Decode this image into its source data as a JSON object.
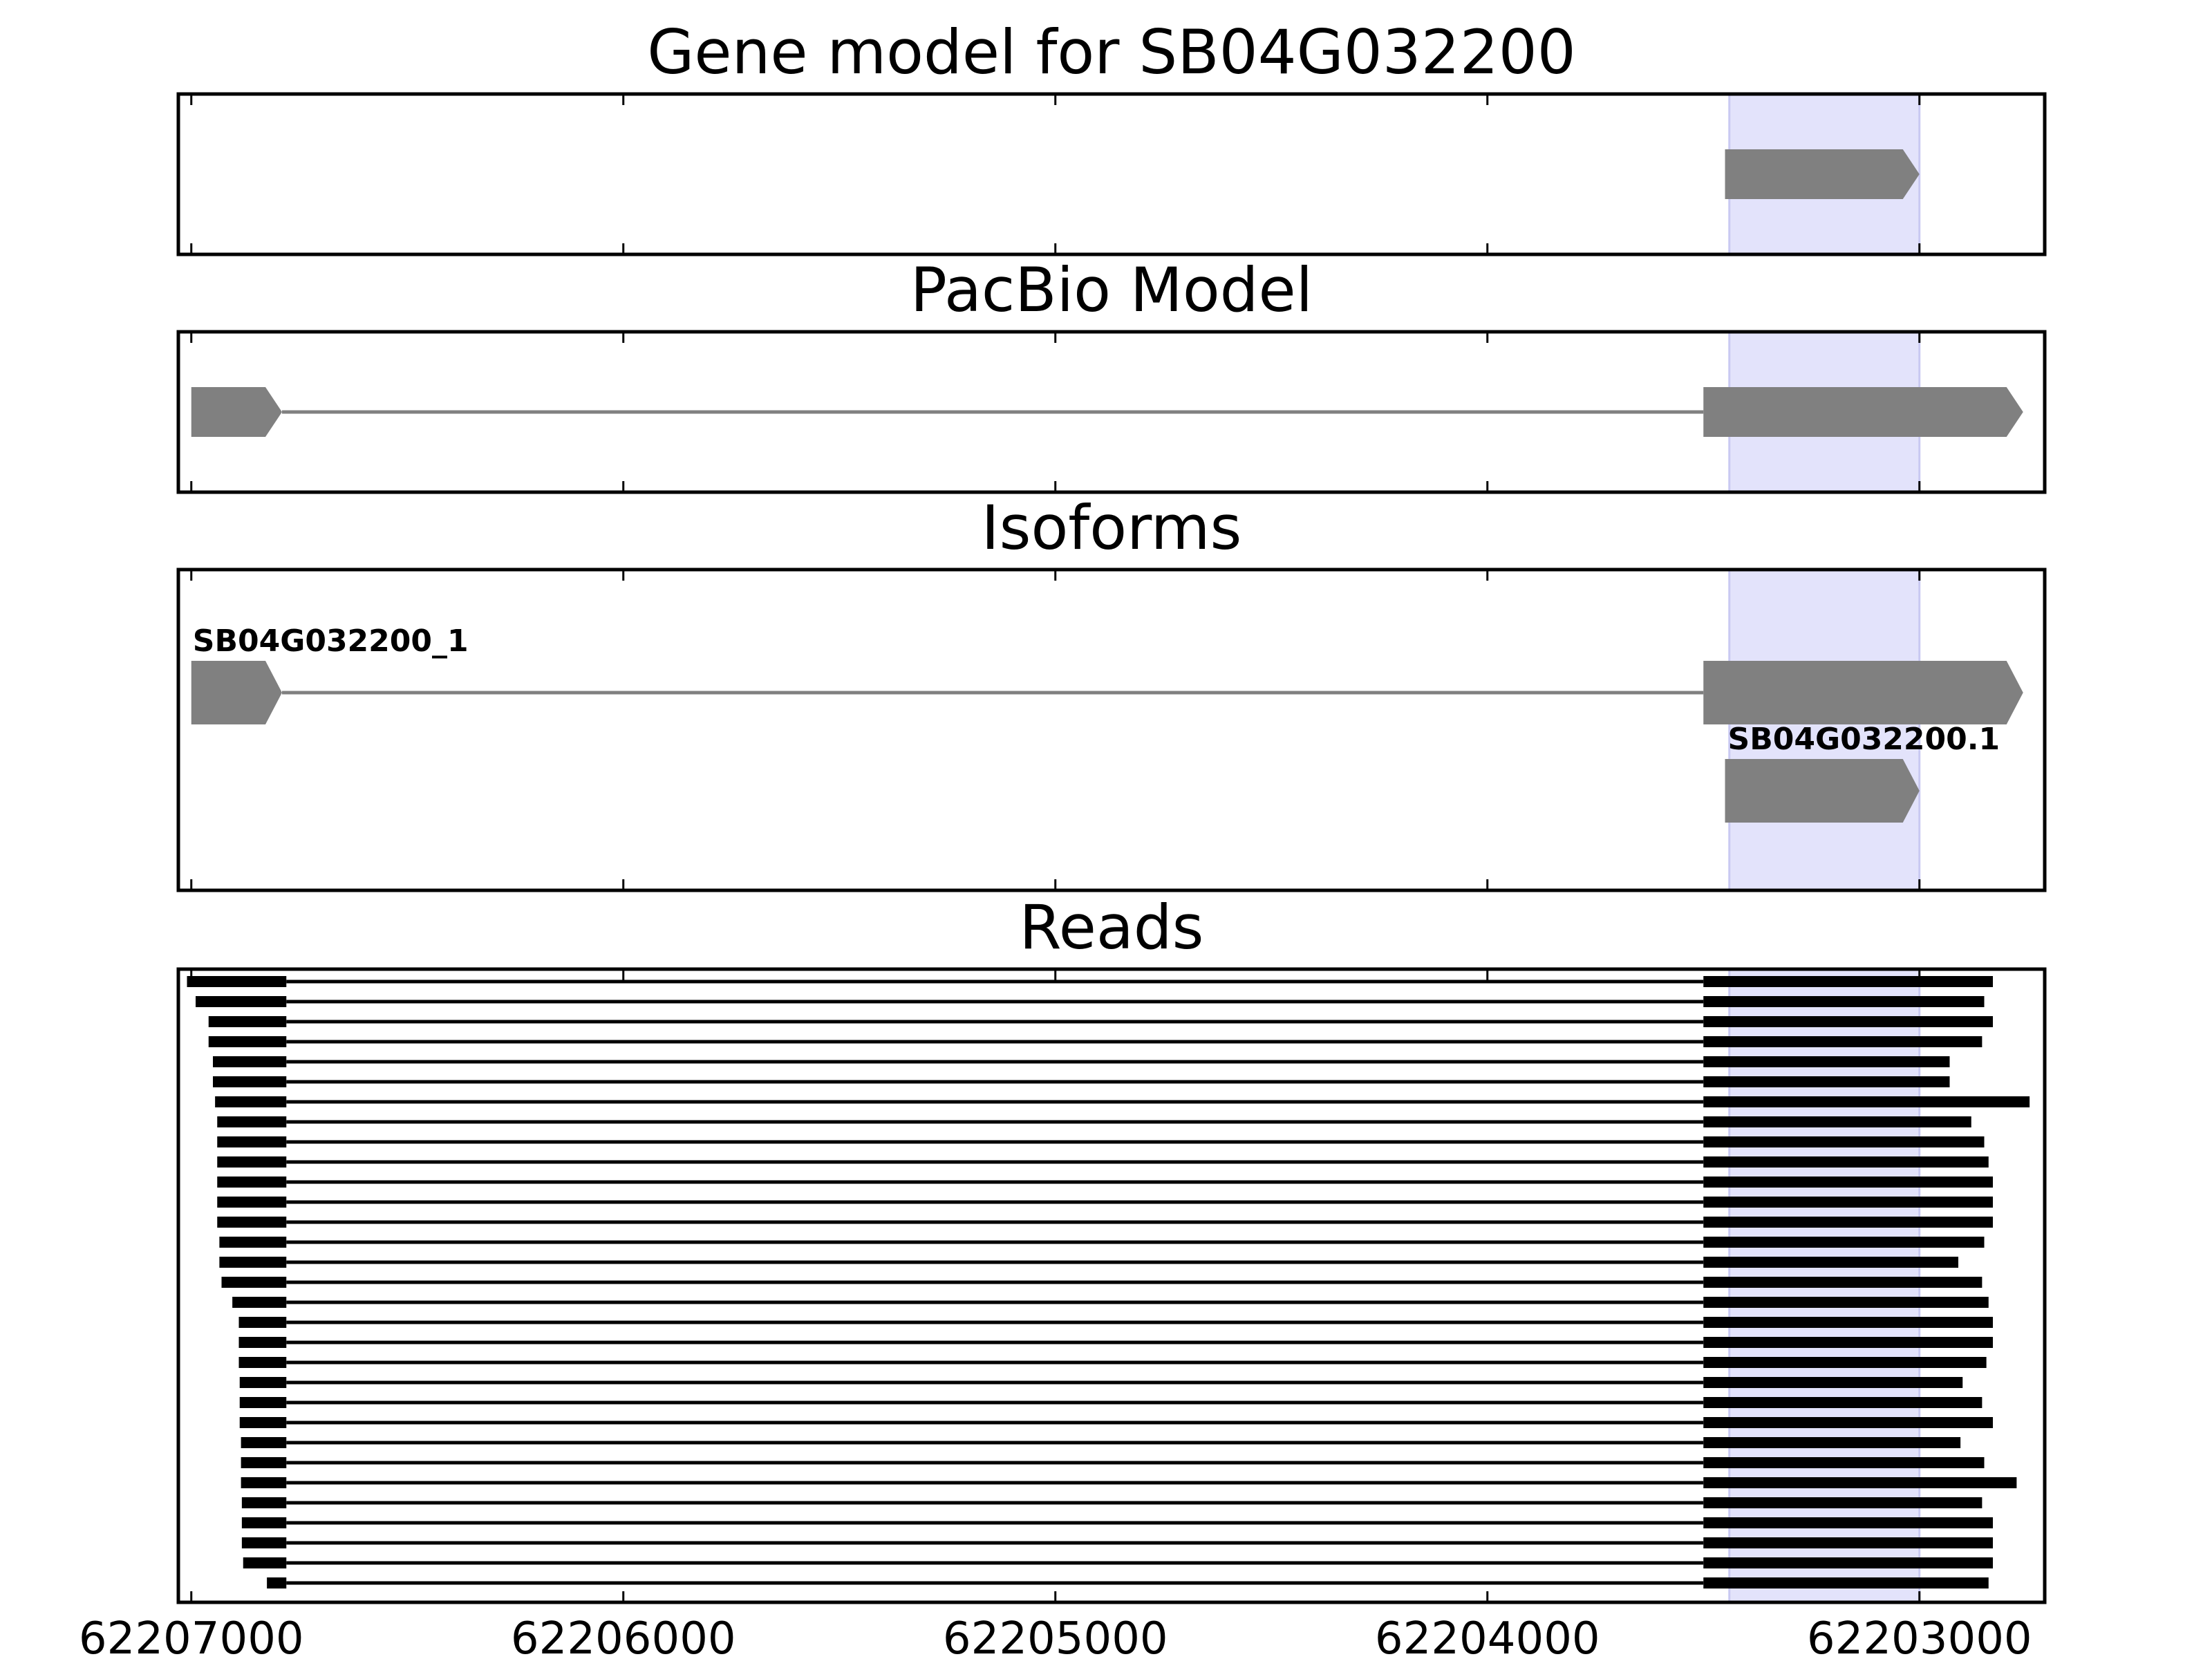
{
  "chart_data": {
    "type": "gene-track",
    "x_reversed": true,
    "xlim": [
      62207030,
      62202710
    ],
    "x_ticks": [
      62207000,
      62206000,
      62205000,
      62204000,
      62203000
    ],
    "x_tick_labels": [
      "62207000",
      "62206000",
      "62205000",
      "62204000",
      "62203000"
    ],
    "highlight_region": {
      "start": 62203440,
      "end": 62203000,
      "color": "#e3e3fb"
    },
    "colors": {
      "feature": "#808080",
      "intron": "#808080",
      "read": "#000000",
      "frame": "#000000"
    },
    "panels": [
      {
        "title": "Gene model for SB04G032200",
        "tracks": [
          {
            "label": "",
            "strand": "-",
            "exons": [
              [
                62203450,
                62203000
              ]
            ]
          }
        ]
      },
      {
        "title": "PacBio Model",
        "tracks": [
          {
            "label": "",
            "strand": "-",
            "exons": [
              [
                62207000,
                62206790
              ],
              [
                62203500,
                62202760
              ]
            ]
          }
        ]
      },
      {
        "title": "Isoforms",
        "tracks": [
          {
            "label": "SB04G032200_1",
            "strand": "-",
            "exons": [
              [
                62207000,
                62206790
              ],
              [
                62203500,
                62202760
              ]
            ]
          },
          {
            "label": "SB04G032200.1",
            "strand": "-",
            "exons": [
              [
                62203450,
                62203000
              ]
            ]
          }
        ]
      },
      {
        "title": "Reads",
        "reads": [
          {
            "start": 62207010,
            "left_exon_end": 62206780,
            "right_exon_start": 62203500,
            "end": 62202830
          },
          {
            "start": 62206990,
            "left_exon_end": 62206780,
            "right_exon_start": 62203500,
            "end": 62202850
          },
          {
            "start": 62206960,
            "left_exon_end": 62206780,
            "right_exon_start": 62203500,
            "end": 62202830
          },
          {
            "start": 62206960,
            "left_exon_end": 62206780,
            "right_exon_start": 62203500,
            "end": 62202855
          },
          {
            "start": 62206950,
            "left_exon_end": 62206780,
            "right_exon_start": 62203500,
            "end": 62202930
          },
          {
            "start": 62206950,
            "left_exon_end": 62206780,
            "right_exon_start": 62203500,
            "end": 62202930
          },
          {
            "start": 62206945,
            "left_exon_end": 62206780,
            "right_exon_start": 62203500,
            "end": 62202745
          },
          {
            "start": 62206940,
            "left_exon_end": 62206780,
            "right_exon_start": 62203500,
            "end": 62202880
          },
          {
            "start": 62206940,
            "left_exon_end": 62206780,
            "right_exon_start": 62203500,
            "end": 62202850
          },
          {
            "start": 62206940,
            "left_exon_end": 62206780,
            "right_exon_start": 62203500,
            "end": 62202840
          },
          {
            "start": 62206940,
            "left_exon_end": 62206780,
            "right_exon_start": 62203500,
            "end": 62202830
          },
          {
            "start": 62206940,
            "left_exon_end": 62206780,
            "right_exon_start": 62203500,
            "end": 62202830
          },
          {
            "start": 62206940,
            "left_exon_end": 62206780,
            "right_exon_start": 62203500,
            "end": 62202830
          },
          {
            "start": 62206935,
            "left_exon_end": 62206780,
            "right_exon_start": 62203500,
            "end": 62202850
          },
          {
            "start": 62206935,
            "left_exon_end": 62206780,
            "right_exon_start": 62203500,
            "end": 62202910
          },
          {
            "start": 62206930,
            "left_exon_end": 62206780,
            "right_exon_start": 62203500,
            "end": 62202855
          },
          {
            "start": 62206905,
            "left_exon_end": 62206780,
            "right_exon_start": 62203500,
            "end": 62202840
          },
          {
            "start": 62206890,
            "left_exon_end": 62206780,
            "right_exon_start": 62203500,
            "end": 62202830
          },
          {
            "start": 62206890,
            "left_exon_end": 62206780,
            "right_exon_start": 62203500,
            "end": 62202830
          },
          {
            "start": 62206890,
            "left_exon_end": 62206780,
            "right_exon_start": 62203500,
            "end": 62202845
          },
          {
            "start": 62206888,
            "left_exon_end": 62206780,
            "right_exon_start": 62203500,
            "end": 62202900
          },
          {
            "start": 62206888,
            "left_exon_end": 62206780,
            "right_exon_start": 62203500,
            "end": 62202855
          },
          {
            "start": 62206888,
            "left_exon_end": 62206780,
            "right_exon_start": 62203500,
            "end": 62202830
          },
          {
            "start": 62206885,
            "left_exon_end": 62206780,
            "right_exon_start": 62203500,
            "end": 62202905
          },
          {
            "start": 62206885,
            "left_exon_end": 62206780,
            "right_exon_start": 62203500,
            "end": 62202850
          },
          {
            "start": 62206885,
            "left_exon_end": 62206780,
            "right_exon_start": 62203500,
            "end": 62202775
          },
          {
            "start": 62206883,
            "left_exon_end": 62206780,
            "right_exon_start": 62203500,
            "end": 62202855
          },
          {
            "start": 62206883,
            "left_exon_end": 62206780,
            "right_exon_start": 62203500,
            "end": 62202830
          },
          {
            "start": 62206883,
            "left_exon_end": 62206780,
            "right_exon_start": 62203500,
            "end": 62202830
          },
          {
            "start": 62206880,
            "left_exon_end": 62206780,
            "right_exon_start": 62203500,
            "end": 62202830
          },
          {
            "start": 62206825,
            "left_exon_end": 62206780,
            "right_exon_start": 62203500,
            "end": 62202840
          }
        ]
      }
    ]
  }
}
